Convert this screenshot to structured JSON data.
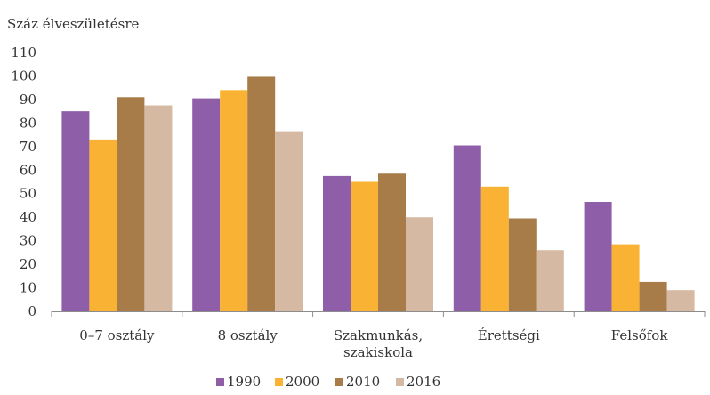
{
  "chart_data": {
    "type": "bar",
    "title": "",
    "ylabel": "Száz élveszületésre",
    "xlabel": "",
    "ylim": [
      0,
      110
    ],
    "yticks": [
      0,
      10,
      20,
      30,
      40,
      50,
      60,
      70,
      80,
      90,
      100,
      110
    ],
    "grid": false,
    "legend_position": "bottom",
    "categories": [
      [
        "0–7 osztály"
      ],
      [
        "8 osztály"
      ],
      [
        "Szakmunkás,",
        "szakiskola"
      ],
      [
        "Érettségi"
      ],
      [
        "Felsőfok"
      ]
    ],
    "series": [
      {
        "name": "1990",
        "color": "#8E5EA8",
        "values": [
          85,
          90.5,
          57.5,
          70.5,
          46.5
        ]
      },
      {
        "name": "2000",
        "color": "#F9B233",
        "values": [
          73,
          94,
          55,
          53,
          28.5
        ]
      },
      {
        "name": "2010",
        "color": "#A77C48",
        "values": [
          91,
          100,
          58.5,
          39.5,
          12.5
        ]
      },
      {
        "name": "2016",
        "color": "#D6B9A2",
        "values": [
          87.5,
          76.5,
          40,
          26,
          9
        ]
      }
    ]
  }
}
